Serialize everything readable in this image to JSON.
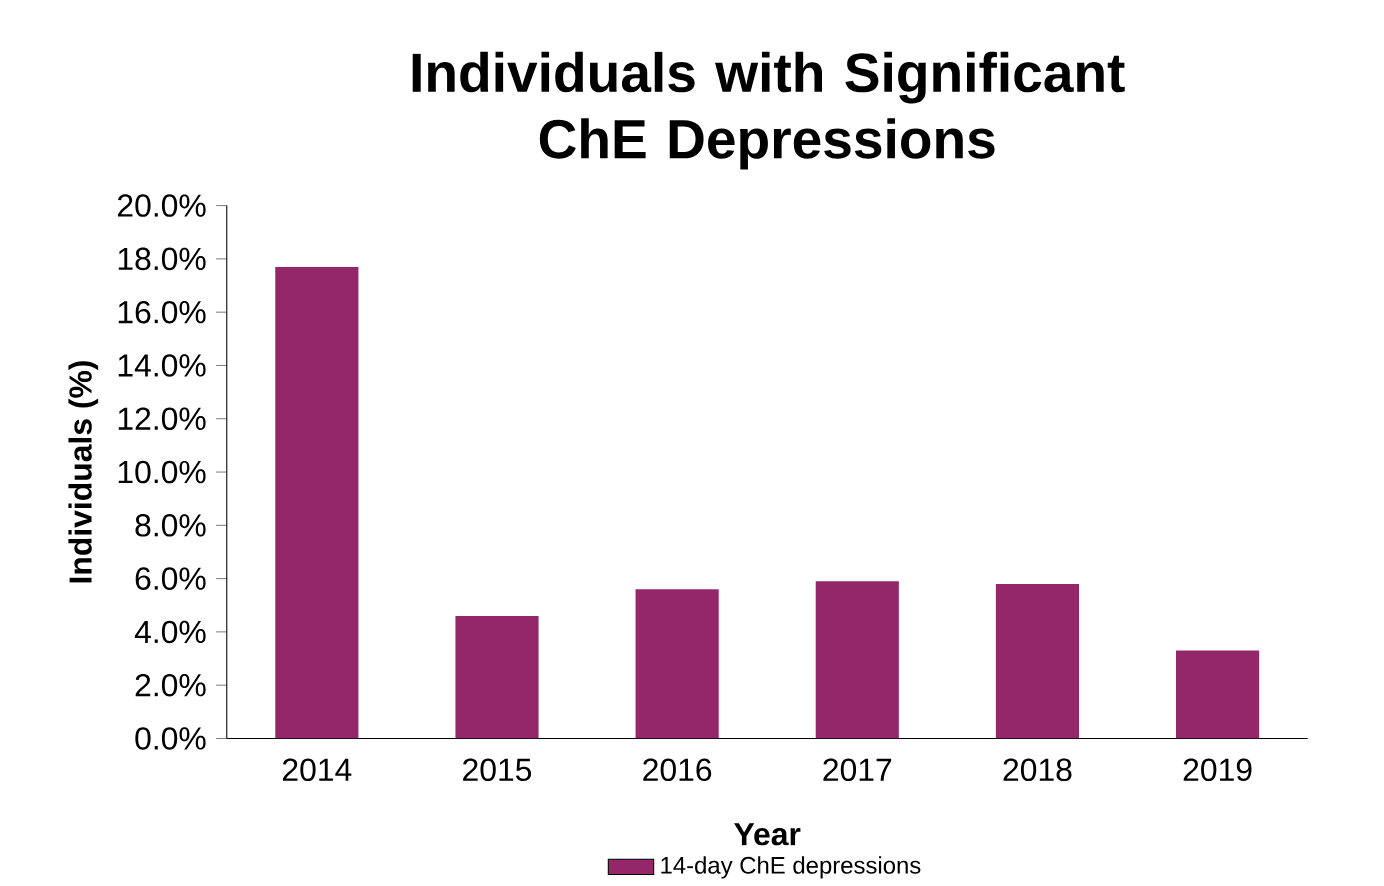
{
  "chart_data": {
    "type": "bar",
    "title": "Individuals with Significant ChE Depressions",
    "xlabel": "Year",
    "ylabel": "Individuals  (%)",
    "categories": [
      "2014",
      "2015",
      "2016",
      "2017",
      "2018",
      "2019"
    ],
    "series": [
      {
        "name": "14-day ChE depressions",
        "color": "#93276a",
        "values": [
          17.7,
          4.6,
          5.6,
          5.9,
          5.8,
          3.3
        ]
      }
    ],
    "ylim": [
      0,
      20
    ],
    "yticks": [
      {
        "value": 0,
        "label": "0.0%"
      },
      {
        "value": 2,
        "label": "2.0%"
      },
      {
        "value": 4,
        "label": "4.0%"
      },
      {
        "value": 6,
        "label": "6.0%"
      },
      {
        "value": 8,
        "label": "8.0%"
      },
      {
        "value": 10,
        "label": "10.0%"
      },
      {
        "value": 12,
        "label": "12.0%"
      },
      {
        "value": 14,
        "label": "14.0%"
      },
      {
        "value": 16,
        "label": "16.0%"
      },
      {
        "value": 18,
        "label": "18.0%"
      },
      {
        "value": 20,
        "label": "20.0%"
      }
    ],
    "grid": false,
    "legend": "bottom"
  }
}
